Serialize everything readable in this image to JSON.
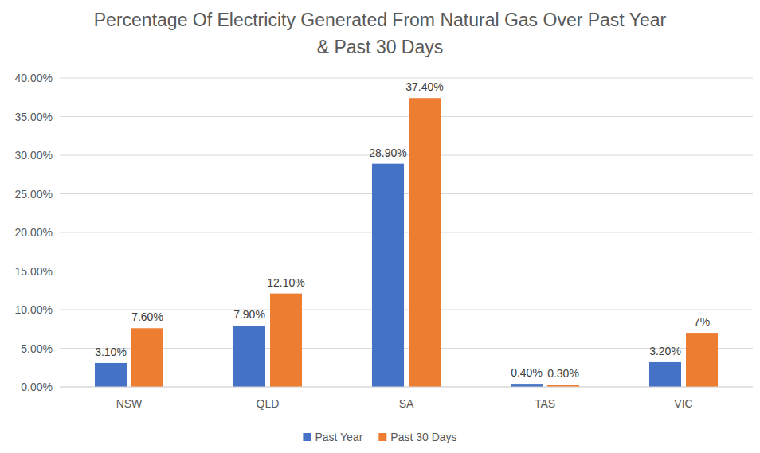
{
  "chart_data": {
    "type": "bar",
    "title": "Percentage Of Electricity Generated From Natural Gas Over Past Year & Past 30 Days",
    "categories": [
      "NSW",
      "QLD",
      "SA",
      "TAS",
      "VIC"
    ],
    "series": [
      {
        "name": "Past Year",
        "color": "#4472c4",
        "values": [
          3.1,
          7.9,
          28.9,
          0.4,
          3.2
        ],
        "value_labels": [
          "3.10%",
          "7.90%",
          "28.90%",
          "0.40%",
          "3.20%"
        ]
      },
      {
        "name": "Past 30 Days",
        "color": "#ed7d31",
        "values": [
          7.6,
          12.1,
          37.4,
          0.3,
          7
        ],
        "value_labels": [
          "7.60%",
          "12.10%",
          "37.40%",
          "0.30%",
          "7%"
        ]
      }
    ],
    "ylim": [
      0,
      40
    ],
    "yticks": [
      {
        "value": 0,
        "label": "0.00%"
      },
      {
        "value": 5,
        "label": "5.00%"
      },
      {
        "value": 10,
        "label": "10.00%"
      },
      {
        "value": 15,
        "label": "15.00%"
      },
      {
        "value": 20,
        "label": "20.00%"
      },
      {
        "value": 25,
        "label": "25.00%"
      },
      {
        "value": 30,
        "label": "30.00%"
      },
      {
        "value": 35,
        "label": "35.00%"
      },
      {
        "value": 40,
        "label": "40.00%"
      }
    ],
    "grid": true,
    "legend": "bottom",
    "data_labels": true
  }
}
